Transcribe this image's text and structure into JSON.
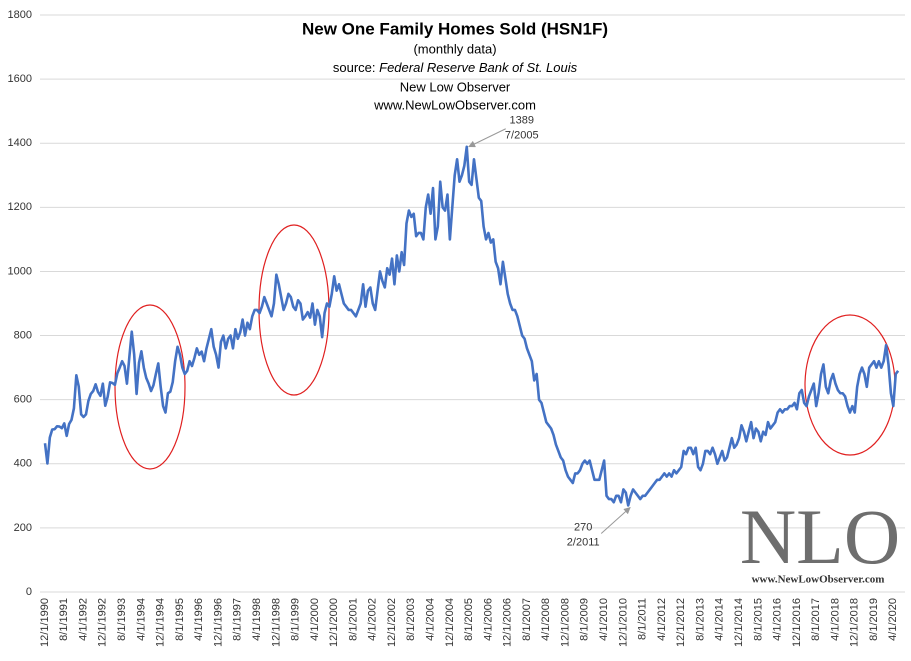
{
  "chart_data": {
    "type": "line",
    "title": "New One Family Homes Sold (HSN1F)",
    "subtitle": "(monthly data)",
    "source_label": "source:",
    "source": "Federal Reserve Bank of St. Louis",
    "credit": "New Low Observer",
    "credit_url": "www.NewLowObserver.com",
    "watermark": "NLO",
    "watermark_url": "www.NewLowObserver.com",
    "ylim": [
      0,
      1800
    ],
    "yticks": [
      0,
      200,
      400,
      600,
      800,
      1000,
      1200,
      1400,
      1600,
      1800
    ],
    "grid": true,
    "annotations": [
      {
        "value": 1389,
        "date": "7/2005"
      },
      {
        "value": 270,
        "date": "2/2011"
      }
    ],
    "categories": [
      "12/1/1990",
      null,
      null,
      null,
      null,
      null,
      null,
      null,
      "8/1/1991",
      null,
      null,
      null,
      null,
      null,
      null,
      null,
      "4/1/1992",
      null,
      null,
      null,
      null,
      null,
      null,
      null,
      "12/1/1992",
      null,
      null,
      null,
      null,
      null,
      null,
      null,
      "8/1/1993",
      null,
      null,
      null,
      null,
      null,
      null,
      null,
      "4/1/1994",
      null,
      null,
      null,
      null,
      null,
      null,
      null,
      "12/1/1994",
      null,
      null,
      null,
      null,
      null,
      null,
      null,
      "8/1/1995",
      null,
      null,
      null,
      null,
      null,
      null,
      null,
      "4/1/1996",
      null,
      null,
      null,
      null,
      null,
      null,
      null,
      "12/1/1996",
      null,
      null,
      null,
      null,
      null,
      null,
      null,
      "8/1/1997",
      null,
      null,
      null,
      null,
      null,
      null,
      null,
      "4/1/1998",
      null,
      null,
      null,
      null,
      null,
      null,
      null,
      "12/1/1998",
      null,
      null,
      null,
      null,
      null,
      null,
      null,
      "8/1/1999",
      null,
      null,
      null,
      null,
      null,
      null,
      null,
      "4/1/2000",
      null,
      null,
      null,
      null,
      null,
      null,
      null,
      "12/1/2000",
      null,
      null,
      null,
      null,
      null,
      null,
      null,
      "8/1/2001",
      null,
      null,
      null,
      null,
      null,
      null,
      null,
      "4/1/2002",
      null,
      null,
      null,
      null,
      null,
      null,
      null,
      "12/1/2002",
      null,
      null,
      null,
      null,
      null,
      null,
      null,
      "8/1/2003",
      null,
      null,
      null,
      null,
      null,
      null,
      null,
      "4/1/2004",
      null,
      null,
      null,
      null,
      null,
      null,
      null,
      "12/1/2004",
      null,
      null,
      null,
      null,
      null,
      null,
      null,
      "8/1/2005",
      null,
      null,
      null,
      null,
      null,
      null,
      null,
      "4/1/2006",
      null,
      null,
      null,
      null,
      null,
      null,
      null,
      "12/1/2006",
      null,
      null,
      null,
      null,
      null,
      null,
      null,
      "8/1/2007",
      null,
      null,
      null,
      null,
      null,
      null,
      null,
      "4/1/2008",
      null,
      null,
      null,
      null,
      null,
      null,
      null,
      "12/1/2008",
      null,
      null,
      null,
      null,
      null,
      null,
      null,
      "8/1/2009",
      null,
      null,
      null,
      null,
      null,
      null,
      null,
      "4/1/2010",
      null,
      null,
      null,
      null,
      null,
      null,
      null,
      "12/1/2010",
      null,
      null,
      null,
      null,
      null,
      null,
      null,
      "8/1/2011",
      null,
      null,
      null,
      null,
      null,
      null,
      null,
      "4/1/2012",
      null,
      null,
      null,
      null,
      null,
      null,
      null,
      "12/1/2012",
      null,
      null,
      null,
      null,
      null,
      null,
      null,
      "8/1/2013",
      null,
      null,
      null,
      null,
      null,
      null,
      null,
      "4/1/2014",
      null,
      null,
      null,
      null,
      null,
      null,
      null,
      "12/1/2014",
      null,
      null,
      null,
      null,
      null,
      null,
      null,
      "8/1/2015",
      null,
      null,
      null,
      null,
      null,
      null,
      null,
      "4/1/2016",
      null,
      null,
      null,
      null,
      null,
      null,
      null,
      "12/1/2016",
      null,
      null,
      null,
      null,
      null,
      null,
      null,
      "8/1/2017",
      null,
      null,
      null,
      null,
      null,
      null,
      null,
      "4/1/2018",
      null,
      null,
      null,
      null,
      null,
      null,
      null,
      "12/1/2018",
      null,
      null,
      null,
      null,
      null,
      null,
      null,
      "8/1/2019",
      null,
      null,
      null,
      null,
      null,
      null,
      null,
      "4/1/2020",
      null,
      null
    ],
    "series": [
      {
        "color": "#4472c4",
        "values": [
          464,
          401,
          482,
          507,
          508,
          517,
          516,
          511,
          526,
          487,
          524,
          537,
          573,
          676,
          641,
          554,
          546,
          554,
          596,
          618,
          627,
          648,
          624,
          612,
          650,
          581,
          609,
          654,
          652,
          646,
          682,
          700,
          720,
          705,
          650,
          733,
          812,
          741,
          618,
          715,
          751,
          700,
          668,
          650,
          627,
          645,
          680,
          713,
          640,
          580,
          560,
          620,
          625,
          655,
          720,
          765,
          740,
          700,
          680,
          690,
          720,
          705,
          730,
          760,
          740,
          750,
          720,
          760,
          790,
          820,
          765,
          740,
          700,
          780,
          800,
          760,
          790,
          800,
          760,
          820,
          790,
          810,
          850,
          800,
          840,
          820,
          860,
          880,
          880,
          870,
          890,
          920,
          900,
          880,
          860,
          900,
          990,
          960,
          920,
          880,
          900,
          930,
          920,
          890,
          880,
          910,
          900,
          850,
          860,
          873,
          856,
          900,
          834,
          880,
          860,
          795,
          870,
          900,
          890,
          930,
          985,
          940,
          960,
          930,
          900,
          890,
          880,
          880,
          870,
          860,
          880,
          900,
          960,
          890,
          940,
          950,
          900,
          880,
          940,
          1000,
          970,
          950,
          1010,
          990,
          1040,
          960,
          1050,
          1000,
          1060,
          1020,
          1150,
          1190,
          1170,
          1180,
          1110,
          1120,
          1120,
          1100,
          1200,
          1240,
          1180,
          1260,
          1100,
          1140,
          1280,
          1200,
          1190,
          1240,
          1100,
          1200,
          1300,
          1350,
          1280,
          1300,
          1330,
          1389,
          1280,
          1270,
          1350,
          1290,
          1230,
          1220,
          1140,
          1100,
          1120,
          1090,
          1100,
          1030,
          1010,
          960,
          1030,
          980,
          930,
          900,
          880,
          880,
          860,
          830,
          800,
          790,
          760,
          740,
          720,
          660,
          680,
          600,
          590,
          560,
          530,
          520,
          510,
          490,
          460,
          440,
          420,
          410,
          380,
          360,
          350,
          340,
          370,
          370,
          380,
          400,
          410,
          400,
          410,
          380,
          350,
          350,
          350,
          380,
          410,
          300,
          290,
          290,
          280,
          300,
          300,
          280,
          320,
          310,
          270,
          300,
          320,
          310,
          300,
          290,
          300,
          300,
          310,
          320,
          330,
          340,
          350,
          350,
          360,
          370,
          360,
          370,
          360,
          380,
          370,
          380,
          390,
          440,
          430,
          450,
          450,
          430,
          450,
          390,
          380,
          400,
          440,
          440,
          430,
          450,
          430,
          400,
          420,
          440,
          410,
          420,
          450,
          480,
          450,
          460,
          480,
          520,
          500,
          470,
          500,
          530,
          480,
          510,
          500,
          470,
          500,
          490,
          530,
          510,
          520,
          530,
          560,
          570,
          560,
          570,
          570,
          580,
          580,
          590,
          570,
          620,
          630,
          590,
          580,
          610,
          630,
          650,
          580,
          620,
          680,
          710,
          640,
          620,
          660,
          680,
          650,
          630,
          620,
          620,
          610,
          580,
          560,
          580,
          560,
          640,
          680,
          700,
          680,
          640,
          700,
          710,
          720,
          700,
          720,
          700,
          720,
          770,
          710,
          620,
          580,
          680,
          690
        ]
      }
    ]
  }
}
